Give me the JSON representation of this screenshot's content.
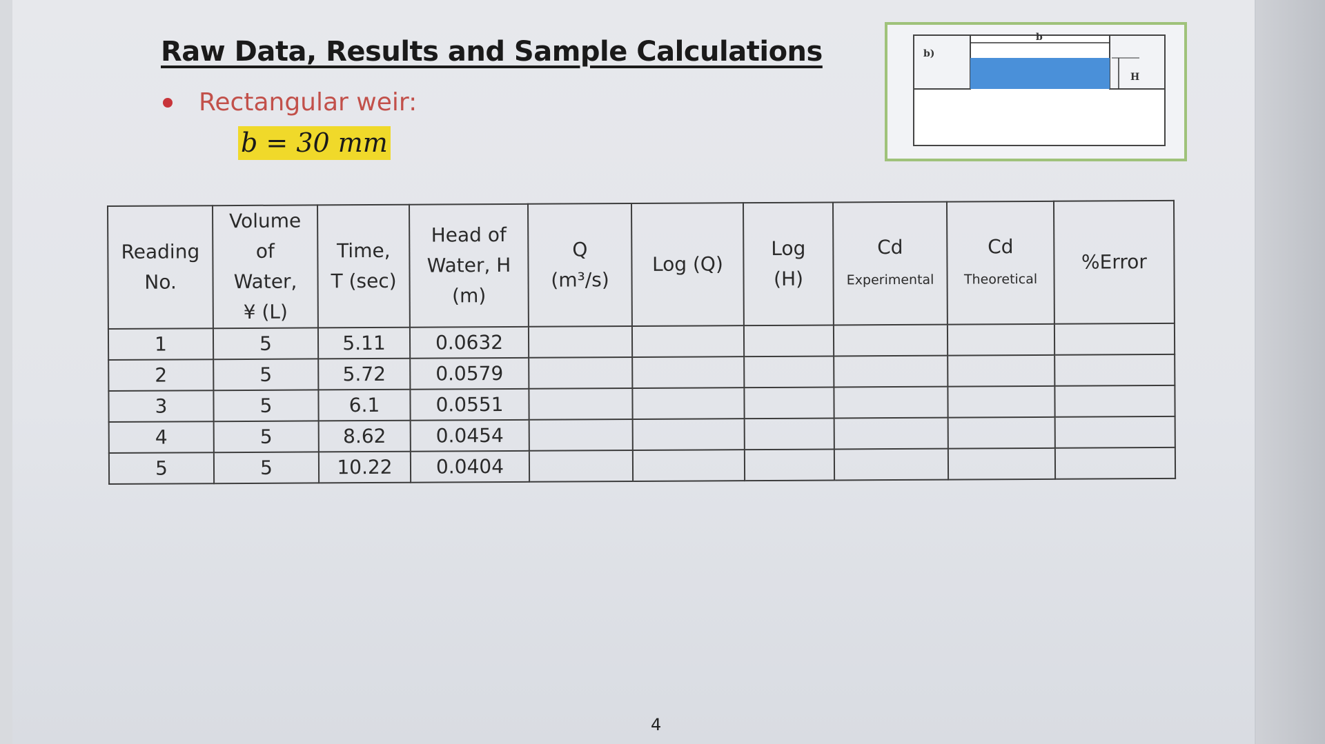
{
  "slide": {
    "title": "Raw Data, Results and Sample Calculations",
    "bullet": "Rectangular weir:",
    "formula": "b = 30 mm",
    "page_number": "4"
  },
  "figure": {
    "label": "b)",
    "width_label": "b",
    "head_label": "H",
    "water_color": "#4a90d9",
    "border_color": "#9fc27a"
  },
  "table": {
    "headers": {
      "reading_no": [
        "Reading",
        "No."
      ],
      "volume": [
        "Volume",
        "of",
        "Water,",
        "¥ (L)"
      ],
      "time": [
        "Time,",
        "T (sec)"
      ],
      "head": [
        "Head of",
        "Water, H",
        "(m)"
      ],
      "q": [
        "Q",
        "(m³/s)"
      ],
      "log_q": "Log (Q)",
      "log_h": [
        "Log",
        "(H)"
      ],
      "cd_exp": [
        "Cd",
        "Experimental"
      ],
      "cd_theo": [
        "Cd",
        "Theoretical"
      ],
      "error": "%Error"
    },
    "rows": [
      {
        "reading": "1",
        "volume": "5",
        "time": "5.11",
        "head": "0.0632",
        "q": "",
        "log_q": "",
        "log_h": "",
        "cd_exp": "",
        "cd_theo": "",
        "error": ""
      },
      {
        "reading": "2",
        "volume": "5",
        "time": "5.72",
        "head": "0.0579",
        "q": "",
        "log_q": "",
        "log_h": "",
        "cd_exp": "",
        "cd_theo": "",
        "error": ""
      },
      {
        "reading": "3",
        "volume": "5",
        "time": "6.1",
        "head": "0.0551",
        "q": "",
        "log_q": "",
        "log_h": "",
        "cd_exp": "",
        "cd_theo": "",
        "error": ""
      },
      {
        "reading": "4",
        "volume": "5",
        "time": "8.62",
        "head": "0.0454",
        "q": "",
        "log_q": "",
        "log_h": "",
        "cd_exp": "",
        "cd_theo": "",
        "error": ""
      },
      {
        "reading": "5",
        "volume": "5",
        "time": "10.22",
        "head": "0.0404",
        "q": "",
        "log_q": "",
        "log_h": "",
        "cd_exp": "",
        "cd_theo": "",
        "error": ""
      }
    ]
  }
}
